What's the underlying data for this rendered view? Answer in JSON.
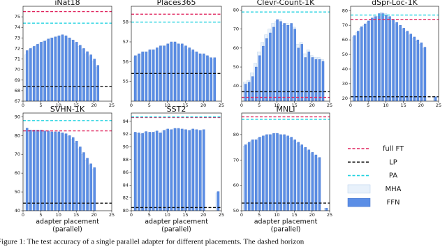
{
  "caption": "Figure 1: The test accuracy of a single parallel adapter for different placements. The dashed horizon",
  "legend": [
    {
      "name": "full FT",
      "color": "#e0245e",
      "kind": "dashed"
    },
    {
      "name": "LP",
      "color": "#111111",
      "kind": "dashed"
    },
    {
      "name": "PA",
      "color": "#22d3e0",
      "kind": "dashed"
    },
    {
      "name": "MHA",
      "color": "#e8f1fb",
      "edge": "#b3cdea",
      "kind": "bar"
    },
    {
      "name": "FFN",
      "color": "#5b8ee6",
      "edge": "#3f6fc9",
      "kind": "bar"
    }
  ],
  "chart_data": [
    {
      "type": "bar",
      "title": "iNat18",
      "x": [
        1,
        2,
        3,
        4,
        5,
        6,
        7,
        8,
        9,
        10,
        11,
        12,
        13,
        14,
        15,
        16,
        17,
        18,
        19,
        20,
        21,
        22,
        23,
        24
      ],
      "xlim": [
        0,
        25
      ],
      "xticks": [
        0,
        5,
        10,
        15,
        20,
        25
      ],
      "ylim": [
        67,
        76
      ],
      "yticks": [
        67,
        68,
        69,
        70,
        71,
        72,
        73,
        74,
        75
      ],
      "hlines": [
        75.5,
        68.4,
        74.4
      ],
      "series": [
        {
          "values": [
            71.4,
            71.9,
            72.1,
            72.3,
            72.5,
            72.7,
            72.8,
            73.0,
            73.0,
            73.1,
            73.2,
            73.1,
            73.0,
            72.8,
            72.5,
            72.2,
            71.9,
            71.5,
            71.2,
            70.8,
            70.2,
            null,
            null,
            null
          ]
        },
        {
          "values": [
            71.8,
            72.0,
            72.2,
            72.4,
            72.6,
            72.7,
            72.9,
            73.0,
            73.1,
            73.2,
            73.3,
            73.2,
            73.0,
            72.8,
            72.6,
            72.3,
            72.0,
            71.7,
            71.4,
            71.0,
            70.4,
            null,
            null,
            null
          ]
        }
      ]
    },
    {
      "type": "bar",
      "title": "Places365",
      "x": [
        1,
        2,
        3,
        4,
        5,
        6,
        7,
        8,
        9,
        10,
        11,
        12,
        13,
        14,
        15,
        16,
        17,
        18,
        19,
        20,
        21,
        22,
        23,
        24
      ],
      "xlim": [
        0,
        25
      ],
      "xticks": [
        0,
        5,
        10,
        15,
        20,
        25
      ],
      "ylim": [
        54,
        58.8
      ],
      "yticks": [
        55,
        56,
        57,
        58
      ],
      "hlines": [
        58.4,
        55.4,
        58.0
      ],
      "series": [
        {
          "values": [
            56.2,
            56.3,
            56.4,
            56.5,
            56.5,
            56.6,
            56.6,
            56.7,
            56.8,
            56.8,
            56.9,
            56.9,
            56.9,
            56.8,
            56.7,
            56.6,
            56.5,
            56.5,
            56.4,
            56.3,
            56.3,
            56.2,
            56.1,
            null
          ]
        },
        {
          "values": [
            56.3,
            56.4,
            56.5,
            56.5,
            56.6,
            56.6,
            56.7,
            56.8,
            56.8,
            56.9,
            57.0,
            57.0,
            56.9,
            56.9,
            56.8,
            56.7,
            56.6,
            56.5,
            56.4,
            56.4,
            56.3,
            56.2,
            56.2,
            null
          ]
        }
      ]
    },
    {
      "type": "bar",
      "title": "Clevr-Count-1K",
      "x": [
        1,
        2,
        3,
        4,
        5,
        6,
        7,
        8,
        9,
        10,
        11,
        12,
        13,
        14,
        15,
        16,
        17,
        18,
        19,
        20,
        21,
        22,
        23,
        24
      ],
      "xlim": [
        0,
        25
      ],
      "xticks": [
        0,
        5,
        10,
        15,
        20,
        25
      ],
      "ylim": [
        32,
        82
      ],
      "yticks": [
        40,
        50,
        60,
        70,
        80
      ],
      "hlines": [
        34,
        37,
        79
      ],
      "series": [
        {
          "values": [
            42,
            43,
            47,
            52,
            58,
            63,
            67,
            70,
            73,
            74,
            75,
            72,
            73,
            72,
            71,
            62,
            63,
            57,
            59,
            56,
            55,
            55,
            54,
            null
          ]
        },
        {
          "values": [
            41,
            42,
            45,
            50,
            56,
            61,
            65,
            68,
            71,
            75,
            74,
            73,
            72,
            73,
            70,
            60,
            62,
            55,
            58,
            55,
            54,
            54,
            53,
            null
          ]
        }
      ]
    },
    {
      "type": "bar",
      "title": "dSpr-Loc-1K",
      "x": [
        1,
        2,
        3,
        4,
        5,
        6,
        7,
        8,
        9,
        10,
        11,
        12,
        13,
        14,
        15,
        16,
        17,
        18,
        19,
        20,
        21,
        22,
        23,
        24
      ],
      "xlim": [
        0,
        25
      ],
      "xticks": [
        0,
        5,
        10,
        15,
        20,
        25
      ],
      "ylim": [
        18,
        83
      ],
      "yticks": [
        20,
        30,
        40,
        50,
        60,
        70,
        80
      ],
      "hlines": [
        74,
        21,
        77
      ],
      "series": [
        {
          "values": [
            62,
            65,
            68,
            70,
            72,
            74,
            77,
            76,
            79,
            78,
            75,
            73,
            71,
            69,
            67,
            65,
            63,
            61,
            59,
            57,
            54,
            null,
            null,
            21
          ]
        },
        {
          "values": [
            63,
            66,
            69,
            71,
            73,
            75,
            76,
            78,
            78,
            77,
            76,
            74,
            72,
            70,
            68,
            66,
            64,
            62,
            60,
            58,
            55,
            null,
            null,
            21
          ]
        }
      ]
    },
    {
      "type": "bar",
      "title": "SVHN-1K",
      "xlabel": [
        "adapter placement",
        "(parallel)"
      ],
      "x": [
        1,
        2,
        3,
        4,
        5,
        6,
        7,
        8,
        9,
        10,
        11,
        12,
        13,
        14,
        15,
        16,
        17,
        18,
        19,
        20,
        21,
        22,
        23,
        24
      ],
      "xlim": [
        0,
        25
      ],
      "xticks": [
        0,
        5,
        10,
        15,
        20,
        25
      ],
      "ylim": [
        40,
        92
      ],
      "yticks": [
        40,
        50,
        60,
        70,
        80,
        90
      ],
      "hlines": [
        82.5,
        44,
        88
      ],
      "series": [
        {
          "values": [
            83,
            83,
            82,
            82,
            82,
            82,
            82,
            81.5,
            81.5,
            81,
            81,
            80.5,
            79.5,
            78,
            76,
            73,
            70,
            67,
            64,
            62,
            null,
            null,
            null,
            null
          ]
        },
        {
          "values": [
            84,
            83,
            83,
            83,
            83,
            82.5,
            82.5,
            82,
            82,
            82,
            81.5,
            81,
            80,
            79,
            77,
            74,
            71,
            68,
            65,
            63,
            null,
            null,
            null,
            null
          ]
        }
      ]
    },
    {
      "type": "bar",
      "title": "SST2",
      "xlabel": [
        "adapter placement",
        "(parallel)"
      ],
      "x": [
        1,
        2,
        3,
        4,
        5,
        6,
        7,
        8,
        9,
        10,
        11,
        12,
        13,
        14,
        15,
        16,
        17,
        18,
        19,
        20,
        21,
        22,
        23,
        24
      ],
      "xlim": [
        0,
        25
      ],
      "xticks": [
        0,
        5,
        10,
        15,
        20,
        25
      ],
      "ylim": [
        80,
        95.3
      ],
      "yticks": [
        80,
        82,
        84,
        86,
        88,
        90,
        92,
        94
      ],
      "hlines": [
        94.6,
        80.5,
        94.7
      ],
      "series": [
        {
          "values": [
            92.2,
            92.1,
            92.0,
            92.3,
            92.2,
            92.2,
            92.4,
            92.1,
            92.5,
            92.7,
            92.6,
            92.8,
            92.8,
            92.7,
            92.6,
            92.5,
            92.7,
            92.6,
            92.5,
            92.6,
            null,
            null,
            null,
            82.8
          ]
        },
        {
          "values": [
            92.3,
            92.2,
            92.1,
            92.4,
            92.3,
            92.3,
            92.5,
            92.2,
            92.6,
            92.8,
            92.7,
            92.9,
            92.9,
            92.8,
            92.7,
            92.6,
            92.8,
            92.7,
            92.6,
            92.7,
            null,
            null,
            null,
            83.0
          ]
        }
      ]
    },
    {
      "type": "bar",
      "title": "MNLI",
      "xlabel": [
        "adapter placement",
        "(parallel)"
      ],
      "x": [
        1,
        2,
        3,
        4,
        5,
        6,
        7,
        8,
        9,
        10,
        11,
        12,
        13,
        14,
        15,
        16,
        17,
        18,
        19,
        20,
        21,
        22,
        23,
        24
      ],
      "xlim": [
        0,
        25
      ],
      "xticks": [
        0,
        5,
        10,
        15,
        20,
        25
      ],
      "ylim": [
        50,
        88.5
      ],
      "yticks": [
        50,
        60,
        70,
        80
      ],
      "hlines": [
        87,
        53,
        86
      ],
      "series": [
        {
          "values": [
            75.5,
            76.5,
            77.5,
            78,
            78.5,
            79,
            79.5,
            80,
            80,
            80.5,
            80,
            79.5,
            79,
            78.5,
            77.5,
            76.5,
            75.5,
            74.5,
            73.5,
            72.5,
            71.5,
            70.5,
            null,
            51
          ]
        },
        {
          "values": [
            76,
            77,
            78,
            78,
            79,
            79.5,
            80,
            80,
            80.5,
            80.5,
            80,
            80,
            79.5,
            79,
            78,
            77,
            76,
            75,
            74,
            73,
            72,
            71,
            null,
            51
          ]
        }
      ]
    }
  ]
}
